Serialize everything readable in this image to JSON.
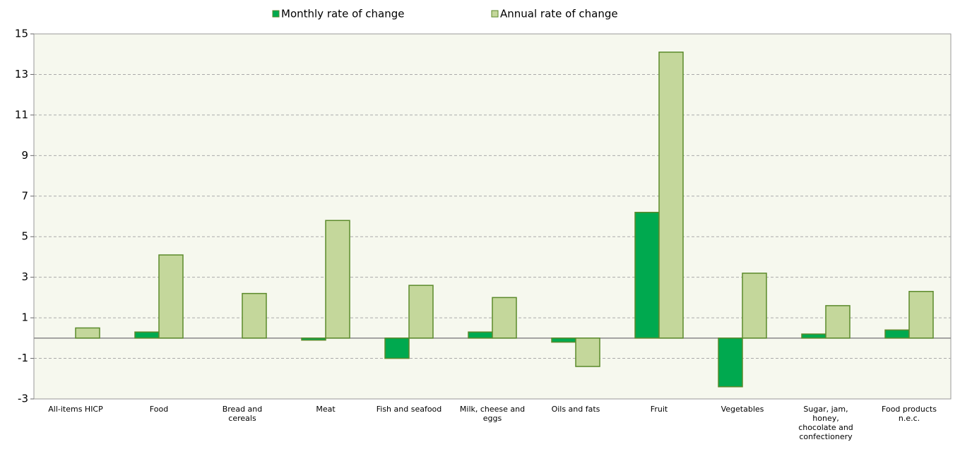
{
  "chart_data": {
    "type": "bar",
    "categories": [
      "All-items HICP",
      "Food",
      "Bread and cereals",
      "Meat",
      "Fish and seafood",
      "Milk, cheese and eggs",
      "Oils and fats",
      "Fruit",
      "Vegetables",
      "Sugar, jam, honey, chocolate and confectionery",
      "Food products n.e.c."
    ],
    "series": [
      {
        "name": "Monthly rate of change",
        "color": "#00a94f",
        "values": [
          0,
          0.3,
          0,
          -0.1,
          -1.0,
          0.3,
          -0.2,
          6.2,
          -2.4,
          0.2,
          0.4
        ]
      },
      {
        "name": "Annual rate of change",
        "color": "#c4d79b",
        "values": [
          0.5,
          4.1,
          2.2,
          5.8,
          2.6,
          2.0,
          -1.4,
          14.1,
          3.2,
          1.6,
          2.3
        ]
      }
    ],
    "ylim": [
      -3,
      15
    ],
    "yticks": [
      -3,
      -1,
      1,
      3,
      5,
      7,
      9,
      11,
      13,
      15
    ],
    "grid": true,
    "legend": "top"
  }
}
